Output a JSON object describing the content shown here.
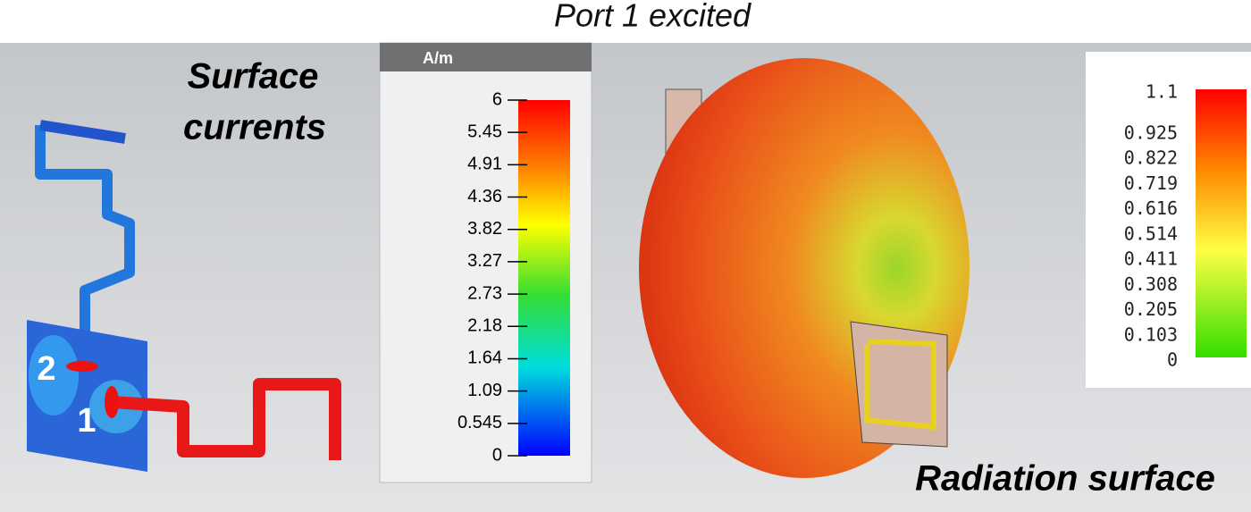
{
  "title": "Port 1 excited",
  "left_panel": {
    "heading": [
      "Surface",
      "currents"
    ],
    "port_labels": [
      "2",
      "1"
    ]
  },
  "current_legend": {
    "unit": "A/m",
    "labels": [
      "6",
      "5.45",
      "4.91",
      "4.36",
      "3.82",
      "3.27",
      "2.73",
      "2.18",
      "1.64",
      "1.09",
      "0.545",
      "0"
    ]
  },
  "right_panel": {
    "heading": "Radiation surface"
  },
  "radiation_legend": {
    "labels": [
      "1.1",
      "0.925",
      "0.822",
      "0.719",
      "0.616",
      "0.514",
      "0.411",
      "0.308",
      "0.205",
      "0.103",
      "0"
    ]
  }
}
